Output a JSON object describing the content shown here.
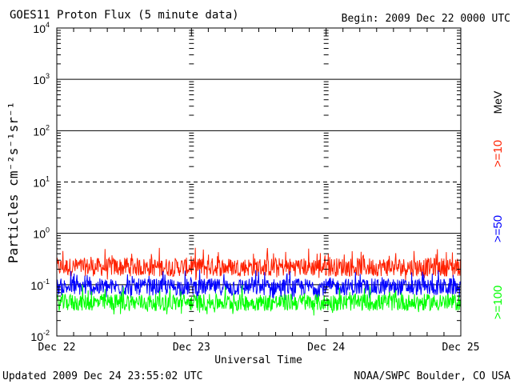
{
  "header": {
    "title": "GOES11 Proton Flux (5 minute data)",
    "begin": "Begin: 2009 Dec 22 0000 UTC"
  },
  "footer": {
    "updated": "Updated 2009 Dec 24 23:55:02 UTC",
    "credit": "NOAA/SWPC Boulder, CO USA"
  },
  "chart_data": {
    "type": "line",
    "title": "GOES11 Proton Flux (5 minute data)",
    "xlabel": "Universal Time",
    "ylabel": "Particles cm⁻²s⁻¹sr⁻¹",
    "y_scale": "log",
    "ylim": [
      0.01,
      10000
    ],
    "y_ticks": [
      {
        "base": "10",
        "exp": "4"
      },
      {
        "base": "10",
        "exp": "3"
      },
      {
        "base": "10",
        "exp": "2"
      },
      {
        "base": "10",
        "exp": "1"
      },
      {
        "base": "10",
        "exp": "0"
      },
      {
        "base": "10",
        "exp": "-1"
      },
      {
        "base": "10",
        "exp": "-2"
      }
    ],
    "x_ticks": [
      "Dec 22",
      "Dec 23",
      "Dec 24",
      "Dec 25"
    ],
    "xlim": [
      "2009-12-22 00:00",
      "2009-12-25 00:00"
    ],
    "legend_position": "right",
    "legend_unit": "MeV",
    "series": [
      {
        "name": ">=10",
        "color": "#ff2000",
        "typical_flux": 0.22,
        "min_flux": 0.12,
        "max_flux": 0.55
      },
      {
        "name": ">=50",
        "color": "#0000ff",
        "typical_flux": 0.09,
        "min_flux": 0.05,
        "max_flux": 0.2
      },
      {
        "name": ">=100",
        "color": "#00ff00",
        "typical_flux": 0.045,
        "min_flux": 0.025,
        "max_flux": 0.1
      }
    ]
  }
}
